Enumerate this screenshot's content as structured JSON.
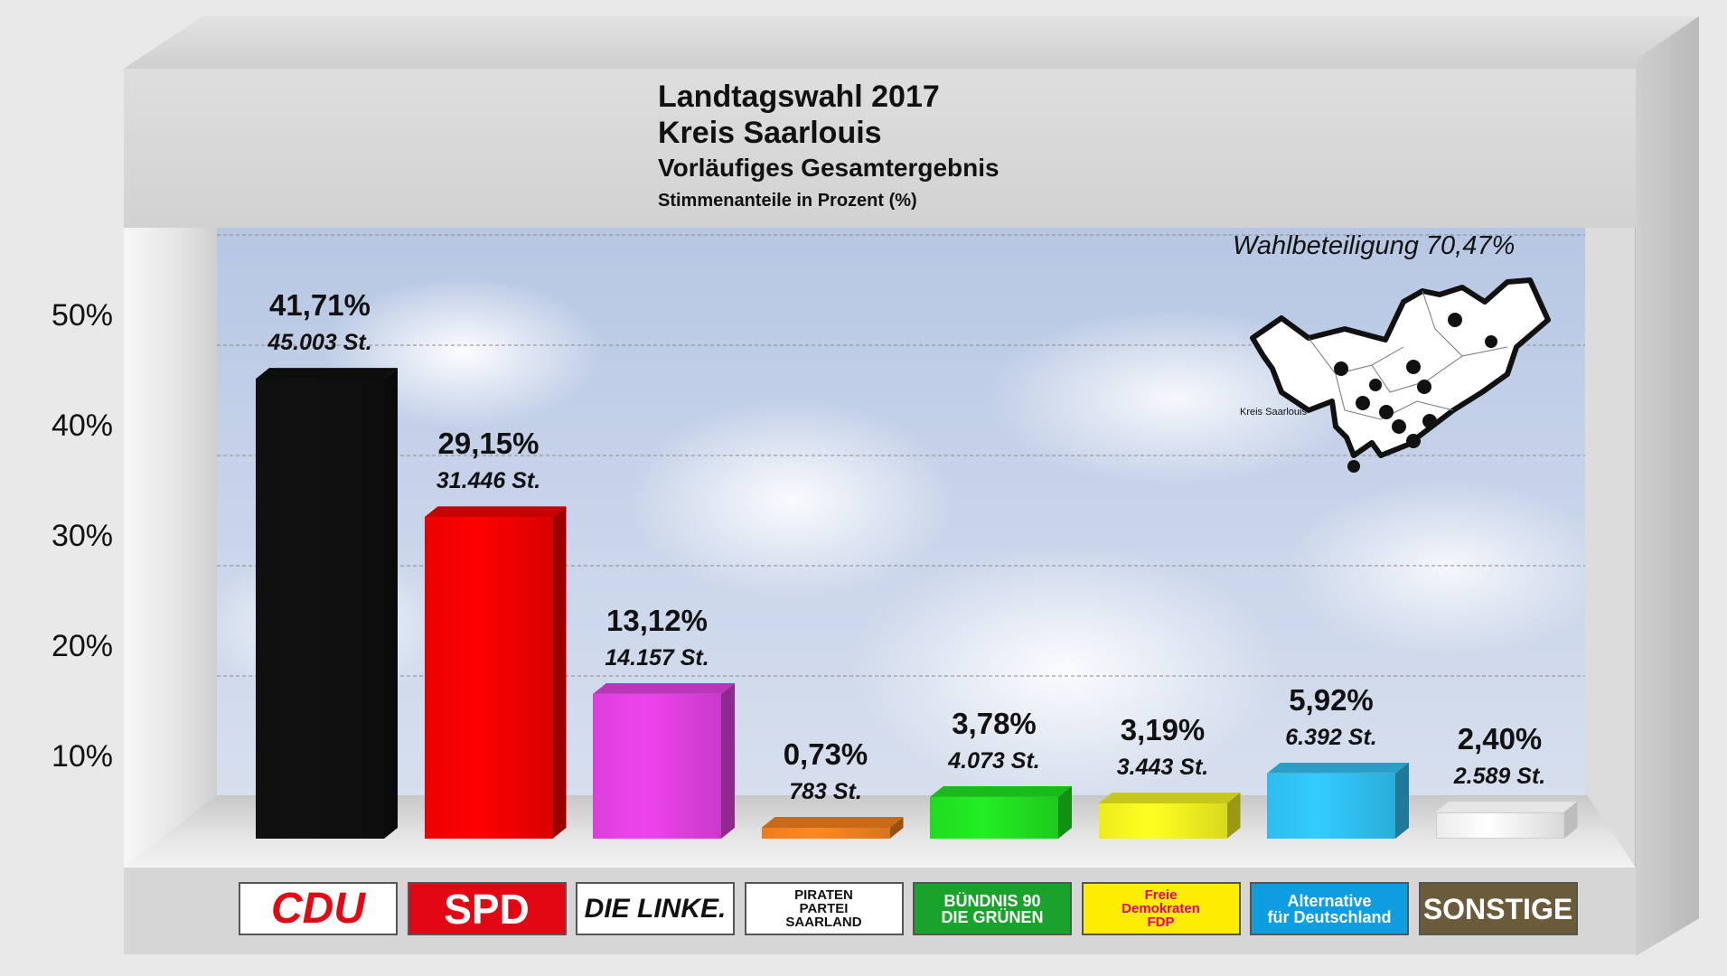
{
  "chart_data": {
    "type": "bar",
    "title": "Landtagswahl 2017",
    "subtitle_lines": [
      "Kreis Saarlouis",
      "Vorläufiges Gesamtergebnis",
      "Stimmenanteile in Prozent (%)"
    ],
    "annotation": "Wahlbeteiligung 70,47%",
    "y_ticks": [
      "10%",
      "20%",
      "30%",
      "40%",
      "50%"
    ],
    "ylim": [
      0,
      55
    ],
    "categories": [
      "CDU",
      "SPD",
      "DIE LINKE",
      "PIRATEN PARTEI SAARLAND",
      "BÜNDNIS 90 DIE GRÜNEN",
      "Freie Demokraten FDP",
      "Alternative für Deutschland",
      "SONSTIGE"
    ],
    "values": [
      41.71,
      29.15,
      13.12,
      0.73,
      3.78,
      3.19,
      5.92,
      2.4
    ],
    "value_labels": [
      "41,71%",
      "29,15%",
      "13,12%",
      "0,73%",
      "3,78%",
      "3,19%",
      "5,92%",
      "2,40%"
    ],
    "vote_labels": [
      "45.003 St.",
      "31.446 St.",
      "14.157 St.",
      "783 St.",
      "4.073 St.",
      "3.443 St.",
      "6.392 St.",
      "2.589 St."
    ],
    "colors": [
      "#111111",
      "#ff0000",
      "#ee44ee",
      "#ff8822",
      "#22ee22",
      "#ffff22",
      "#33ccff",
      "#ffffff"
    ],
    "grid": true
  },
  "logos": [
    {
      "name": "cdu",
      "lines": [
        "CDU"
      ],
      "bg": "#ffffff",
      "fg": "#e30613"
    },
    {
      "name": "spd",
      "lines": [
        "SPD"
      ],
      "bg": "#e30613",
      "fg": "#ffffff"
    },
    {
      "name": "die-linke",
      "lines": [
        "DIE LINKE."
      ],
      "bg": "#ffffff",
      "fg": "#111111"
    },
    {
      "name": "piraten",
      "lines": [
        "PIRATEN",
        "PARTEI",
        "SAARLAND"
      ],
      "bg": "#ffffff",
      "fg": "#111111"
    },
    {
      "name": "gruene",
      "lines": [
        "BÜNDNIS 90",
        "DIE GRÜNEN"
      ],
      "bg": "#1aa32c",
      "fg": "#ffffff"
    },
    {
      "name": "fdp",
      "lines": [
        "Freie",
        "Demokraten",
        "FDP"
      ],
      "bg": "#ffed00",
      "fg": "#e5007d"
    },
    {
      "name": "afd",
      "lines": [
        "Alternative",
        "für Deutschland"
      ],
      "bg": "#0e9ee0",
      "fg": "#ffffff"
    },
    {
      "name": "sonstige",
      "lines": [
        "SONSTIGE"
      ],
      "bg": "#6b5b3a",
      "fg": "#ffffff"
    }
  ],
  "map": {
    "label": "Kreis Saarlouis"
  }
}
